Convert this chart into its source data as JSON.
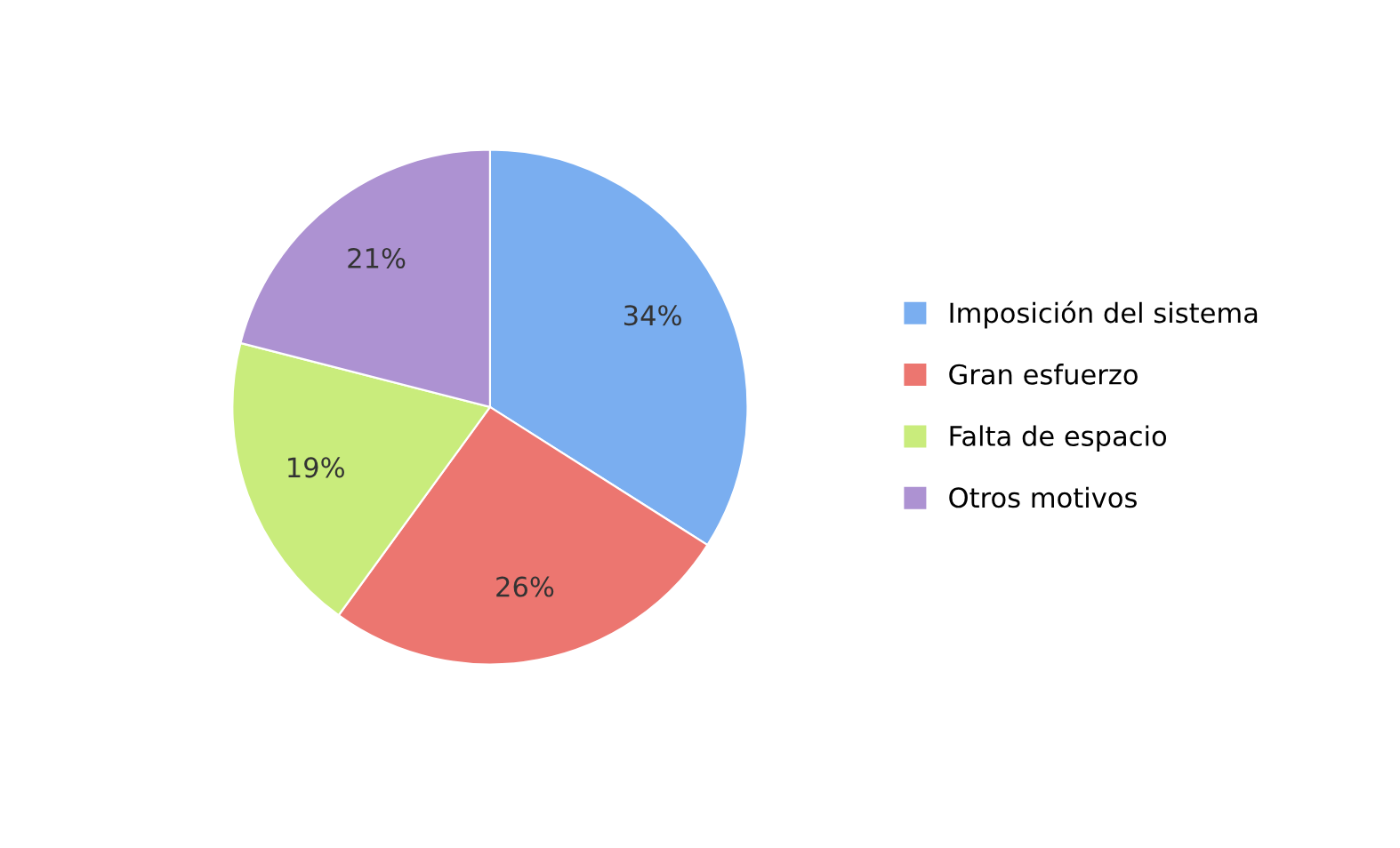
{
  "chart_data": {
    "type": "pie",
    "categories": [
      "Imposición del sistema",
      "Gran esfuerzo",
      "Falta de espacio",
      "Otros motivos"
    ],
    "values": [
      34,
      26,
      19,
      21
    ],
    "value_labels": [
      "34%",
      "26%",
      "19%",
      "21%"
    ],
    "colors": [
      "#7aaef0",
      "#ec7670",
      "#c9ec7c",
      "#ad92d2"
    ],
    "legend": "right"
  }
}
